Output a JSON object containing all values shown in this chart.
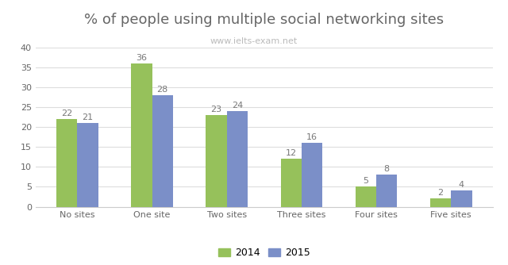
{
  "title": "% of people using multiple social networking sites",
  "subtitle": "www.ielts-exam.net",
  "categories": [
    "No sites",
    "One site",
    "Two sites",
    "Three sites",
    "Four sites",
    "Five sites"
  ],
  "values_2014": [
    22,
    36,
    23,
    12,
    5,
    2
  ],
  "values_2015": [
    21,
    28,
    24,
    16,
    8,
    4
  ],
  "color_2014": "#96c15b",
  "color_2015": "#7b8fc8",
  "ylim": [
    0,
    40
  ],
  "yticks": [
    0,
    5,
    10,
    15,
    20,
    25,
    30,
    35,
    40
  ],
  "bar_width": 0.28,
  "legend_labels": [
    "2014",
    "2015"
  ],
  "title_fontsize": 13,
  "subtitle_color": "#bbbbbb",
  "subtitle_fontsize": 8,
  "label_fontsize": 8,
  "tick_fontsize": 8,
  "background_color": "#ffffff"
}
